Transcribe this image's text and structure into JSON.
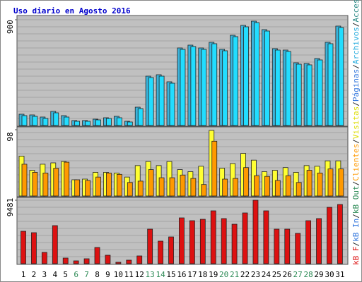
{
  "chart_data": [
    {
      "type": "bar",
      "title": "Uso diario en Agosto 2016",
      "ylim": [
        0,
        900
      ],
      "yticks": [
        900
      ],
      "series": [
        {
          "color": "#3ab4dc",
          "values": [
            96,
            90,
            72,
            120,
            84,
            42,
            42,
            54,
            66,
            78,
            36,
            156,
            420,
            432,
            372,
            660,
            684,
            660,
            708,
            648,
            768,
            852,
            888,
            816,
            654,
            642,
            534,
            528,
            570,
            708,
            846
          ]
        },
        {
          "color": "#22ddff",
          "values": [
            84,
            78,
            60,
            108,
            72,
            36,
            36,
            48,
            60,
            66,
            30,
            144,
            408,
            420,
            360,
            648,
            672,
            648,
            696,
            636,
            756,
            840,
            876,
            804,
            642,
            630,
            522,
            516,
            558,
            696,
            834
          ]
        }
      ]
    },
    {
      "type": "bar",
      "ylim": [
        0,
        98
      ],
      "yticks": [
        98
      ],
      "series": [
        {
          "color": "#ffff33",
          "values": [
            59,
            38,
            47,
            49,
            51,
            24,
            25,
            35,
            35,
            34,
            28,
            45,
            51,
            45,
            51,
            39,
            36,
            44,
            97,
            41,
            48,
            63,
            53,
            36,
            38,
            42,
            35,
            45,
            44,
            52,
            52
          ]
        },
        {
          "color": "#ff9900",
          "values": [
            47,
            35,
            34,
            41,
            50,
            24,
            23,
            28,
            34,
            32,
            20,
            22,
            39,
            27,
            27,
            31,
            26,
            17,
            81,
            25,
            26,
            42,
            30,
            29,
            23,
            30,
            20,
            38,
            34,
            40,
            40
          ]
        }
      ]
    },
    {
      "type": "bar",
      "ylim": [
        0,
        9481
      ],
      "yticks": [
        9481
      ],
      "categories": [
        "1",
        "2",
        "3",
        "4",
        "5",
        "6",
        "7",
        "8",
        "9",
        "10",
        "11",
        "12",
        "13",
        "14",
        "15",
        "16",
        "17",
        "18",
        "19",
        "20",
        "21",
        "22",
        "23",
        "24",
        "25",
        "26",
        "27",
        "28",
        "29",
        "30",
        "31"
      ],
      "category_colors": [
        "#000",
        "#000",
        "#000",
        "#000",
        "#000",
        "#2e8b57",
        "#2e8b57",
        "#000",
        "#000",
        "#000",
        "#000",
        "#000",
        "#2e8b57",
        "#2e8b57",
        "#000",
        "#000",
        "#000",
        "#000",
        "#000",
        "#2e8b57",
        "#2e8b57",
        "#000",
        "#000",
        "#000",
        "#000",
        "#000",
        "#2e8b57",
        "#2e8b57",
        "#000",
        "#000",
        "#000"
      ],
      "series": [
        {
          "color": "#dd1111",
          "values": [
            4844,
            4633,
            1685,
            5686,
            842,
            421,
            737,
            2422,
            1264,
            211,
            527,
            1158,
            5160,
            3370,
            4001,
            6845,
            6423,
            6634,
            7898,
            6739,
            5897,
            7582,
            9481,
            7898,
            5160,
            5160,
            4528,
            6423,
            6739,
            8424,
            8845
          ]
        }
      ]
    }
  ],
  "legend": {
    "separator": "/",
    "items": [
      {
        "label": "kB F",
        "color": "#dd1111"
      },
      {
        "label": "kB In",
        "color": "#3377dd"
      },
      {
        "label": "kB Out",
        "color": "#2e8b57"
      },
      {
        "label": "Clientes",
        "color": "#ff9900"
      },
      {
        "label": "Visitas",
        "color": "#dddd00"
      },
      {
        "label": "Páginas",
        "color": "#3377dd"
      },
      {
        "label": "Archivos",
        "color": "#22aadd"
      },
      {
        "label": "Accesos",
        "color": "#2e8b87"
      }
    ]
  }
}
